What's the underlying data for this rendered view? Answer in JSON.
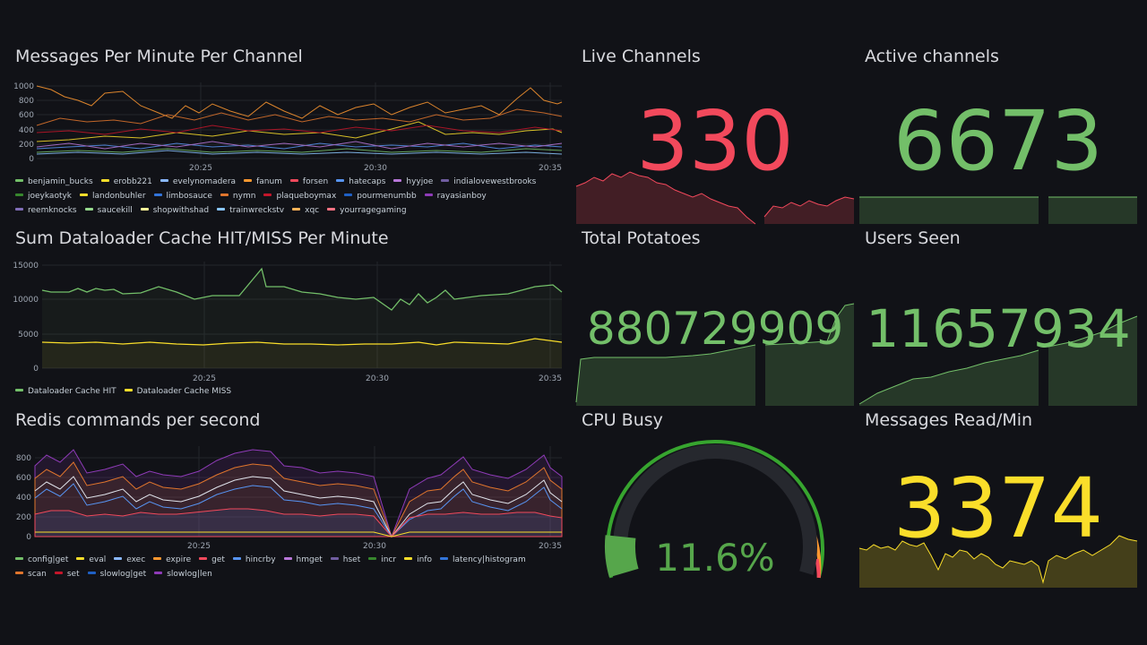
{
  "panels": {
    "messages": {
      "title": "Messages Per Minute Per Channel",
      "yticks": [
        "1000",
        "800",
        "600",
        "400",
        "200",
        "0"
      ],
      "xticks": [
        "20:25",
        "20:30",
        "20:35"
      ],
      "legend": [
        {
          "name": "benjamin_bucks",
          "color": "#73bf69"
        },
        {
          "name": "erobb221",
          "color": "#fade2a"
        },
        {
          "name": "evelynomadera",
          "color": "#8ab8ff"
        },
        {
          "name": "fanum",
          "color": "#ff9830"
        },
        {
          "name": "forsen",
          "color": "#f2495c"
        },
        {
          "name": "hatecaps",
          "color": "#5794f2"
        },
        {
          "name": "hyyjoe",
          "color": "#b877d9"
        },
        {
          "name": "indialovewestbrooks",
          "color": "#705da0"
        },
        {
          "name": "joeykaotyk",
          "color": "#37872d"
        },
        {
          "name": "landonbuhler",
          "color": "#fade2a"
        },
        {
          "name": "limbosauce",
          "color": "#3274d9"
        },
        {
          "name": "nymn",
          "color": "#e0752d"
        },
        {
          "name": "plaqueboymax",
          "color": "#c4162a"
        },
        {
          "name": "pourmenumbb",
          "color": "#1f60c4"
        },
        {
          "name": "rayasianboy",
          "color": "#8f3bb8"
        },
        {
          "name": "reemknocks",
          "color": "#806eb7"
        },
        {
          "name": "saucekill",
          "color": "#96d98d"
        },
        {
          "name": "shopwithshad",
          "color": "#fff899"
        },
        {
          "name": "trainwreckstv",
          "color": "#8ac6ff"
        },
        {
          "name": "xqc",
          "color": "#ffb357"
        },
        {
          "name": "yourragegaming",
          "color": "#ff7383"
        }
      ]
    },
    "cache": {
      "title": "Sum Dataloader Cache HIT/MISS Per Minute",
      "yticks": [
        "15000",
        "10000",
        "5000",
        "0"
      ],
      "xticks": [
        "20:25",
        "20:30",
        "20:35"
      ],
      "legend": [
        {
          "name": "Dataloader Cache HIT",
          "color": "#73bf69"
        },
        {
          "name": "Dataloader Cache MISS",
          "color": "#fade2a"
        }
      ]
    },
    "redis": {
      "title": "Redis commands per second",
      "yticks": [
        "800",
        "600",
        "400",
        "200",
        "0"
      ],
      "xticks": [
        "20:25",
        "20:30",
        "20:35"
      ],
      "legend": [
        {
          "name": "config|get",
          "color": "#73bf69"
        },
        {
          "name": "eval",
          "color": "#fade2a"
        },
        {
          "name": "exec",
          "color": "#8ab8ff"
        },
        {
          "name": "expire",
          "color": "#ff9830"
        },
        {
          "name": "get",
          "color": "#f2495c"
        },
        {
          "name": "hincrby",
          "color": "#5794f2"
        },
        {
          "name": "hmget",
          "color": "#b877d9"
        },
        {
          "name": "hset",
          "color": "#705da0"
        },
        {
          "name": "incr",
          "color": "#37872d"
        },
        {
          "name": "info",
          "color": "#fade2a"
        },
        {
          "name": "latency|histogram",
          "color": "#3274d9"
        },
        {
          "name": "scan",
          "color": "#e0752d"
        },
        {
          "name": "set",
          "color": "#c4162a"
        },
        {
          "name": "slowlog|get",
          "color": "#1f60c4"
        },
        {
          "name": "slowlog|len",
          "color": "#8f3bb8"
        }
      ]
    },
    "live_channels": {
      "title": "Live Channels",
      "value": "330",
      "color": "#f2495c"
    },
    "active_channels": {
      "title": "Active channels",
      "value": "6673",
      "color": "#73bf69"
    },
    "total_potatoes": {
      "title": "Total Potatoes",
      "value": "880729909",
      "color": "#73bf69"
    },
    "users_seen": {
      "title": "Users Seen",
      "value": "11657934",
      "color": "#73bf69"
    },
    "cpu_busy": {
      "title": "CPU Busy",
      "value": "11.6%",
      "percent": 11.6,
      "color": "#56a64b"
    },
    "messages_read": {
      "title": "Messages Read/Min",
      "value": "3374",
      "color": "#fade2a"
    }
  }
}
